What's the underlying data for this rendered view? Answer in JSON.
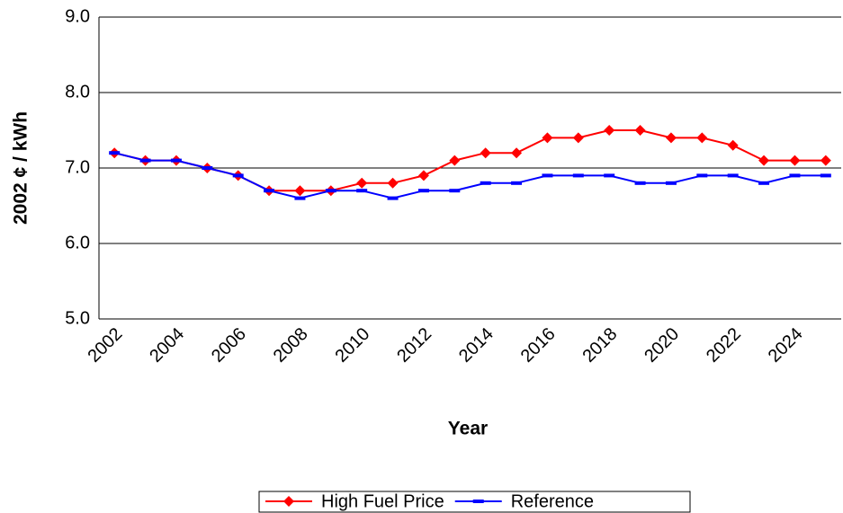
{
  "chart_data": {
    "type": "line",
    "y_label": "2002 ¢ / kWh",
    "x_label": "Year",
    "categories": [
      "2002",
      null,
      "2004",
      null,
      "2006",
      null,
      "2008",
      null,
      "2010",
      null,
      "2012",
      null,
      "2014",
      null,
      "2016",
      null,
      "2018",
      null,
      "2020",
      null,
      "2022",
      null,
      "2024",
      null
    ],
    "series": [
      {
        "name": "High Fuel Price",
        "color": "#ff0000",
        "marker": "diamond",
        "values": [
          7.2,
          7.1,
          7.1,
          7.0,
          6.9,
          6.7,
          6.7,
          6.7,
          6.8,
          6.8,
          6.9,
          7.1,
          7.2,
          7.2,
          7.4,
          7.4,
          7.5,
          7.5,
          7.4,
          7.4,
          7.3,
          7.1,
          7.1,
          7.1
        ]
      },
      {
        "name": "Reference",
        "color": "#0000ff",
        "marker": "dash",
        "values": [
          7.2,
          7.1,
          7.1,
          7.0,
          6.9,
          6.7,
          6.6,
          6.7,
          6.7,
          6.6,
          6.7,
          6.7,
          6.8,
          6.8,
          6.9,
          6.9,
          6.9,
          6.8,
          6.8,
          6.9,
          6.9,
          6.8,
          6.9,
          6.9
        ]
      }
    ],
    "ylim": [
      5.0,
      9.0
    ],
    "yticks": [
      {
        "value": 5.0,
        "label": "5.0"
      },
      {
        "value": 6.0,
        "label": "6.0"
      },
      {
        "value": 7.0,
        "label": "7.0"
      },
      {
        "value": 8.0,
        "label": "8.0"
      },
      {
        "value": 9.0,
        "label": "9.0"
      }
    ],
    "grid": true,
    "legend": "bottom"
  }
}
